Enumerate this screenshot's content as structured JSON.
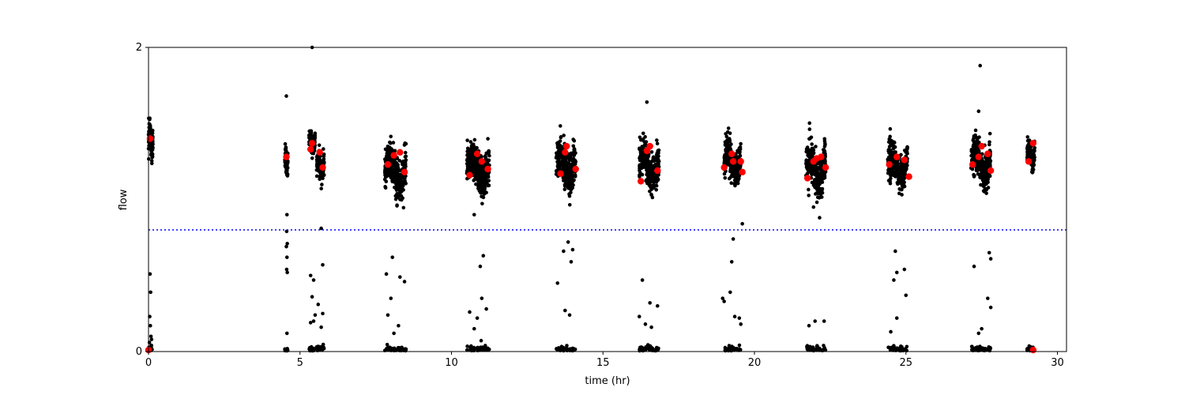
{
  "chart_data": {
    "type": "scatter",
    "title": "",
    "xlabel": "time (hr)",
    "ylabel": "flow",
    "xlim": [
      0,
      30.3
    ],
    "ylim": [
      0,
      2
    ],
    "xticks": [
      0,
      5,
      10,
      15,
      20,
      25,
      30
    ],
    "yticks": [
      0,
      2
    ],
    "grid": false,
    "legend": "none",
    "colors": {
      "raw": "#000000",
      "summary": "#ff0000",
      "threshold": "#0000ff"
    },
    "threshold": {
      "y": 0.8,
      "style": "dotted"
    },
    "series": [
      {
        "marker": "small-dot",
        "bursts": [
          {
            "start": 0.0,
            "end": 0.15,
            "center": 1.38,
            "spread": 0.09
          },
          {
            "start": 4.5,
            "end": 4.6,
            "center": 1.25,
            "spread": 0.08
          },
          {
            "start": 5.3,
            "end": 5.5,
            "center": 1.38,
            "spread": 0.06
          },
          {
            "start": 5.55,
            "end": 5.8,
            "center": 1.22,
            "spread": 0.08
          },
          {
            "start": 7.8,
            "end": 8.5,
            "center": 1.18,
            "spread": 0.12
          },
          {
            "start": 10.5,
            "end": 11.25,
            "center": 1.2,
            "spread": 0.11
          },
          {
            "start": 13.45,
            "end": 14.1,
            "center": 1.22,
            "spread": 0.11
          },
          {
            "start": 16.2,
            "end": 16.85,
            "center": 1.22,
            "spread": 0.12
          },
          {
            "start": 19.0,
            "end": 19.55,
            "center": 1.25,
            "spread": 0.1
          },
          {
            "start": 21.7,
            "end": 22.35,
            "center": 1.2,
            "spread": 0.12
          },
          {
            "start": 24.4,
            "end": 25.05,
            "center": 1.22,
            "spread": 0.1
          },
          {
            "start": 27.15,
            "end": 27.8,
            "center": 1.24,
            "spread": 0.11
          },
          {
            "start": 29.0,
            "end": 29.25,
            "center": 1.3,
            "spread": 0.07
          }
        ],
        "outliers": [
          [
            0.05,
            0.51
          ],
          [
            0.07,
            0.39
          ],
          [
            0.04,
            0.23
          ],
          [
            0.06,
            0.17
          ],
          [
            0.08,
            0.1
          ],
          [
            0.1,
            0.08
          ],
          [
            0.03,
            0.06
          ],
          [
            0.09,
            0.04
          ],
          [
            4.55,
            1.68
          ],
          [
            4.57,
            0.9
          ],
          [
            4.56,
            0.79
          ],
          [
            4.58,
            0.71
          ],
          [
            4.55,
            0.69
          ],
          [
            4.57,
            0.62
          ],
          [
            4.56,
            0.54
          ],
          [
            4.58,
            0.52
          ],
          [
            4.57,
            0.12
          ],
          [
            5.4,
            2.0
          ],
          [
            5.7,
            0.81
          ],
          [
            5.75,
            0.57
          ],
          [
            5.35,
            0.5
          ],
          [
            5.45,
            0.47
          ],
          [
            5.4,
            0.36
          ],
          [
            5.6,
            0.31
          ],
          [
            5.5,
            0.24
          ],
          [
            5.75,
            0.25
          ],
          [
            5.45,
            0.2
          ],
          [
            5.7,
            0.16
          ],
          [
            5.35,
            0.19
          ],
          [
            7.85,
            0.51
          ],
          [
            8.05,
            0.62
          ],
          [
            8.3,
            0.49
          ],
          [
            8.45,
            0.46
          ],
          [
            8.0,
            0.35
          ],
          [
            7.9,
            0.24
          ],
          [
            8.25,
            0.17
          ],
          [
            8.1,
            0.12
          ],
          [
            10.75,
            0.9
          ],
          [
            11.05,
            0.63
          ],
          [
            10.95,
            0.56
          ],
          [
            10.6,
            0.26
          ],
          [
            10.85,
            0.22
          ],
          [
            11.0,
            0.35
          ],
          [
            11.15,
            0.28
          ],
          [
            10.75,
            0.15
          ],
          [
            13.85,
            0.72
          ],
          [
            14.0,
            0.67
          ],
          [
            13.7,
            0.66
          ],
          [
            13.95,
            0.59
          ],
          [
            13.5,
            0.45
          ],
          [
            13.75,
            0.27
          ],
          [
            13.9,
            0.24
          ],
          [
            16.45,
            1.64
          ],
          [
            16.3,
            0.47
          ],
          [
            16.55,
            0.32
          ],
          [
            16.8,
            0.3
          ],
          [
            16.2,
            0.23
          ],
          [
            16.4,
            0.18
          ],
          [
            16.6,
            0.16
          ],
          [
            19.6,
            0.84
          ],
          [
            19.3,
            0.74
          ],
          [
            19.25,
            0.59
          ],
          [
            19.2,
            0.39
          ],
          [
            18.95,
            0.35
          ],
          [
            19.0,
            0.33
          ],
          [
            19.35,
            0.23
          ],
          [
            19.5,
            0.22
          ],
          [
            19.55,
            0.18
          ],
          [
            21.8,
            0.17
          ],
          [
            22.0,
            0.2
          ],
          [
            22.3,
            0.2
          ],
          [
            21.95,
            0.95
          ],
          [
            22.15,
            0.88
          ],
          [
            24.65,
            0.66
          ],
          [
            24.7,
            0.52
          ],
          [
            24.6,
            0.47
          ],
          [
            24.95,
            0.54
          ],
          [
            25.0,
            0.37
          ],
          [
            24.7,
            0.22
          ],
          [
            24.5,
            0.13
          ],
          [
            27.45,
            1.88
          ],
          [
            27.4,
            1.58
          ],
          [
            27.75,
            0.65
          ],
          [
            27.8,
            0.61
          ],
          [
            27.25,
            0.56
          ],
          [
            27.7,
            0.35
          ],
          [
            27.8,
            0.29
          ],
          [
            27.5,
            0.15
          ],
          [
            27.4,
            0.12
          ]
        ],
        "baseline_dots": true
      },
      {
        "marker": "large-dot",
        "points": [
          [
            0.05,
            1.4
          ],
          [
            0.0,
            0.01
          ],
          [
            4.55,
            1.28
          ],
          [
            5.35,
            1.33
          ],
          [
            5.4,
            1.37
          ],
          [
            5.65,
            1.31
          ],
          [
            5.75,
            1.21
          ],
          [
            7.9,
            1.23
          ],
          [
            8.1,
            1.29
          ],
          [
            8.3,
            1.31
          ],
          [
            8.45,
            1.18
          ],
          [
            10.6,
            1.16
          ],
          [
            10.85,
            1.3
          ],
          [
            11.0,
            1.25
          ],
          [
            11.2,
            1.2
          ],
          [
            13.6,
            1.17
          ],
          [
            13.75,
            1.31
          ],
          [
            13.8,
            1.35
          ],
          [
            14.1,
            1.2
          ],
          [
            16.25,
            1.12
          ],
          [
            16.45,
            1.32
          ],
          [
            16.55,
            1.35
          ],
          [
            16.8,
            1.19
          ],
          [
            19.0,
            1.21
          ],
          [
            19.25,
            1.3
          ],
          [
            19.3,
            1.25
          ],
          [
            19.55,
            1.25
          ],
          [
            19.6,
            1.18
          ],
          [
            21.75,
            1.14
          ],
          [
            21.95,
            1.25
          ],
          [
            22.05,
            1.27
          ],
          [
            22.2,
            1.28
          ],
          [
            22.35,
            1.21
          ],
          [
            24.45,
            1.23
          ],
          [
            24.7,
            1.28
          ],
          [
            24.95,
            1.26
          ],
          [
            25.1,
            1.15
          ],
          [
            27.2,
            1.23
          ],
          [
            27.4,
            1.28
          ],
          [
            27.5,
            1.35
          ],
          [
            27.7,
            1.3
          ],
          [
            27.8,
            1.19
          ],
          [
            29.05,
            1.25
          ],
          [
            29.2,
            1.37
          ],
          [
            29.2,
            0.01
          ]
        ]
      }
    ]
  }
}
